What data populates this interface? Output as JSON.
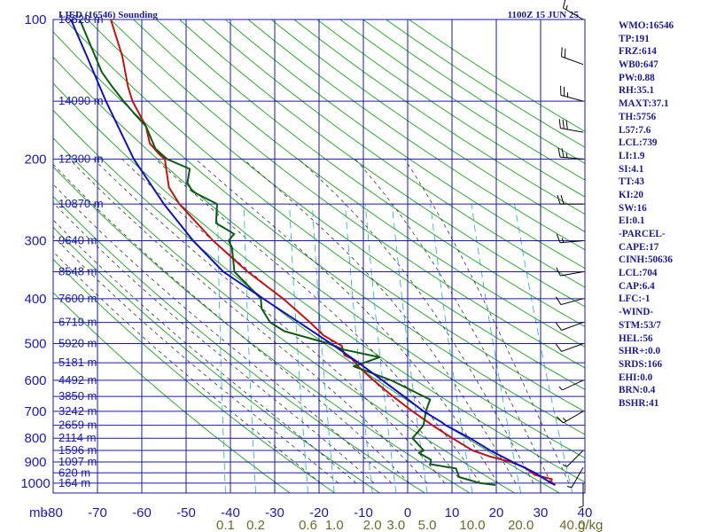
{
  "title": "LIED (16546) Sounding",
  "datetime": "1100Z 15 JUN 25",
  "indices": [
    "WMO:16546",
    "TP:191",
    "FRZ:614",
    "WB0:647",
    "PW:0.88",
    "RH:35.1",
    "MAXT:37.1",
    "TH:5756",
    "L57:7.6",
    "LCL:739",
    "LI:1.9",
    "SI:4.1",
    "TT:43",
    "KI:20",
    "SW:16",
    "EI:0.1",
    "-PARCEL-",
    "CAPE:17",
    "CINH:50636",
    "LCL:704",
    "CAP:6.4",
    "LFC:-1",
    "-WIND-",
    "STM:53/7",
    "HEL:56",
    "SHR+:0.0",
    "SRDS:166",
    "EHI:0.0",
    "BRN:0.4",
    "BSHR:41"
  ],
  "colors": {
    "grid": "#1a1aa8",
    "dry_adiabat": "#19a319",
    "moist_adiabat": "#333333",
    "mixing_ratio": "#2aa6c6",
    "temperature": "#c01414",
    "dewpoint": "#0f5a0f",
    "parcel": "#1212b8",
    "wind": "#000000"
  },
  "chart_data": {
    "type": "line",
    "diagram": "skew-T log-p",
    "title": "LIED (16546) Sounding",
    "xlabel": "",
    "ylabel": "mb",
    "pressure_unit_label": "mb",
    "ylim": [
      1000,
      100
    ],
    "xlim": [
      -80,
      40
    ],
    "pressure_ticks": [
      100,
      200,
      300,
      400,
      500,
      600,
      700,
      800,
      900,
      1000
    ],
    "temperature_ticks": [
      -80,
      -70,
      -60,
      -50,
      -40,
      -30,
      -20,
      -10,
      0,
      10,
      20,
      30,
      40
    ],
    "mixing_ratio_labels": [
      "0.1",
      "0.2",
      "0.6",
      "1.0",
      "2.0",
      "3.0",
      "5.0",
      "10.0",
      "20.0",
      "40.0"
    ],
    "mixing_ratio_unit": "g/kg",
    "height_labels": [
      {
        "p": 100,
        "text": "16620 m"
      },
      {
        "p": 150,
        "text": "14090 m"
      },
      {
        "p": 200,
        "text": "12300 m"
      },
      {
        "p": 250,
        "text": "10870 m"
      },
      {
        "p": 300,
        "text": "9640 m"
      },
      {
        "p": 350,
        "text": "8548 m"
      },
      {
        "p": 400,
        "text": "7600 m"
      },
      {
        "p": 450,
        "text": "6719 m"
      },
      {
        "p": 500,
        "text": "5920 m"
      },
      {
        "p": 550,
        "text": "5181 m"
      },
      {
        "p": 600,
        "text": "4492 m"
      },
      {
        "p": 650,
        "text": "3850 m"
      },
      {
        "p": 700,
        "text": "3242 m"
      },
      {
        "p": 750,
        "text": "2659 m"
      },
      {
        "p": 800,
        "text": "2114 m"
      },
      {
        "p": 850,
        "text": "1596 m"
      },
      {
        "p": 900,
        "text": "1097 m"
      },
      {
        "p": 950,
        "text": "620 m"
      },
      {
        "p": 1000,
        "text": "164 m"
      }
    ],
    "series": [
      {
        "key": "temperature",
        "pressure": [
          1009,
          995,
          980,
          960,
          925,
          900,
          875,
          850,
          800,
          750,
          700,
          650,
          600,
          560,
          540,
          530,
          505,
          500,
          480,
          450,
          400,
          350,
          300,
          250,
          230,
          200,
          195,
          185,
          170,
          150,
          140,
          120,
          100
        ],
        "values": [
          33,
          32,
          32,
          28,
          25.5,
          22,
          17,
          13,
          8,
          3,
          -2,
          -7,
          -12,
          -16,
          -17.5,
          -19.5,
          -20.5,
          -21.5,
          -25,
          -28.5,
          -35.5,
          -44.5,
          -53.5,
          -62.5,
          -65.5,
          -67.5,
          -69,
          -71.5,
          -73,
          -77,
          -78.5,
          -81,
          -85
        ]
      },
      {
        "key": "dewpoint",
        "pressure": [
          1009,
          1000,
          970,
          930,
          910,
          890,
          860,
          850,
          800,
          750,
          700,
          660,
          600,
          560,
          535,
          515,
          500,
          470,
          450,
          420,
          400,
          350,
          310,
          300,
          290,
          275,
          250,
          235,
          225,
          210,
          200,
          190,
          170,
          160,
          150,
          140,
          130,
          100
        ],
        "values": [
          19.5,
          16,
          11,
          10,
          4,
          4,
          1,
          2,
          -1,
          1,
          1,
          1.5,
          -8,
          -17,
          -11.5,
          -20,
          -23.5,
          -34,
          -37.5,
          -40,
          -40.5,
          -47.5,
          -49,
          -50,
          -49,
          -53.5,
          -54,
          -60,
          -61.5,
          -61.5,
          -67,
          -70,
          -73,
          -76,
          -79,
          -82,
          -85,
          -92
        ]
      },
      {
        "key": "parcel",
        "pressure": [
          1009,
          1000,
          950,
          900,
          850,
          800,
          750,
          739,
          700,
          650,
          600,
          550,
          500,
          450,
          400,
          350,
          300,
          250,
          200,
          150,
          120,
          100
        ],
        "values": [
          33,
          32,
          28,
          22.5,
          17,
          12,
          6,
          5,
          0.5,
          -4.5,
          -10,
          -16,
          -23,
          -31,
          -40,
          -50,
          -58,
          -66,
          -74.5,
          -83,
          -89,
          -94
        ]
      }
    ],
    "wind_barbs": [
      {
        "p": 100,
        "dir": 300,
        "kt": 15
      },
      {
        "p": 125,
        "dir": 290,
        "kt": 20
      },
      {
        "p": 150,
        "dir": 285,
        "kt": 25
      },
      {
        "p": 175,
        "dir": 280,
        "kt": 30
      },
      {
        "p": 200,
        "dir": 275,
        "kt": 25
      },
      {
        "p": 250,
        "dir": 270,
        "kt": 20
      },
      {
        "p": 300,
        "dir": 265,
        "kt": 15
      },
      {
        "p": 350,
        "dir": 260,
        "kt": 10
      },
      {
        "p": 400,
        "dir": 255,
        "kt": 10
      },
      {
        "p": 450,
        "dir": 250,
        "kt": 10
      },
      {
        "p": 500,
        "dir": 250,
        "kt": 10
      },
      {
        "p": 600,
        "dir": 245,
        "kt": 5
      },
      {
        "p": 700,
        "dir": 240,
        "kt": 15
      },
      {
        "p": 850,
        "dir": 225,
        "kt": 5
      },
      {
        "p": 925,
        "dir": 210,
        "kt": 5
      },
      {
        "p": 1000,
        "dir": 180,
        "kt": 5
      }
    ],
    "grid": true,
    "legend": "none"
  }
}
